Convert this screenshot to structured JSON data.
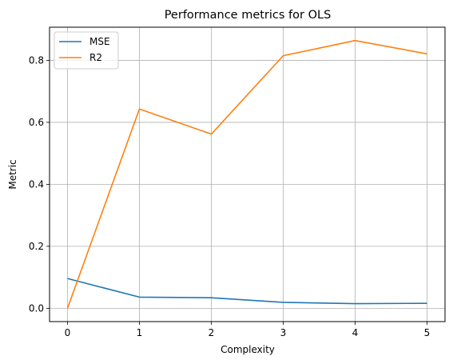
{
  "chart_data": {
    "type": "line",
    "title": "Performance metrics for OLS",
    "xlabel": "Complexity",
    "ylabel": "Metric",
    "x": [
      0,
      1,
      2,
      3,
      4,
      5
    ],
    "series": [
      {
        "name": "MSE",
        "values": [
          0.096,
          0.036,
          0.034,
          0.019,
          0.015,
          0.016
        ],
        "color": "#1f77b4"
      },
      {
        "name": "R2",
        "values": [
          0.0,
          0.643,
          0.562,
          0.815,
          0.864,
          0.821
        ],
        "color": "#ff7f0e"
      }
    ],
    "xticks": [
      0,
      1,
      2,
      3,
      4,
      5
    ],
    "yticks": [
      0.0,
      0.2,
      0.4,
      0.6,
      0.8
    ],
    "ytick_labels": [
      "0.0",
      "0.2",
      "0.4",
      "0.6",
      "0.8"
    ],
    "xlim": [
      -0.25,
      5.25
    ],
    "ylim": [
      -0.043,
      0.907
    ],
    "grid": true,
    "legend_position": "upper-left"
  }
}
